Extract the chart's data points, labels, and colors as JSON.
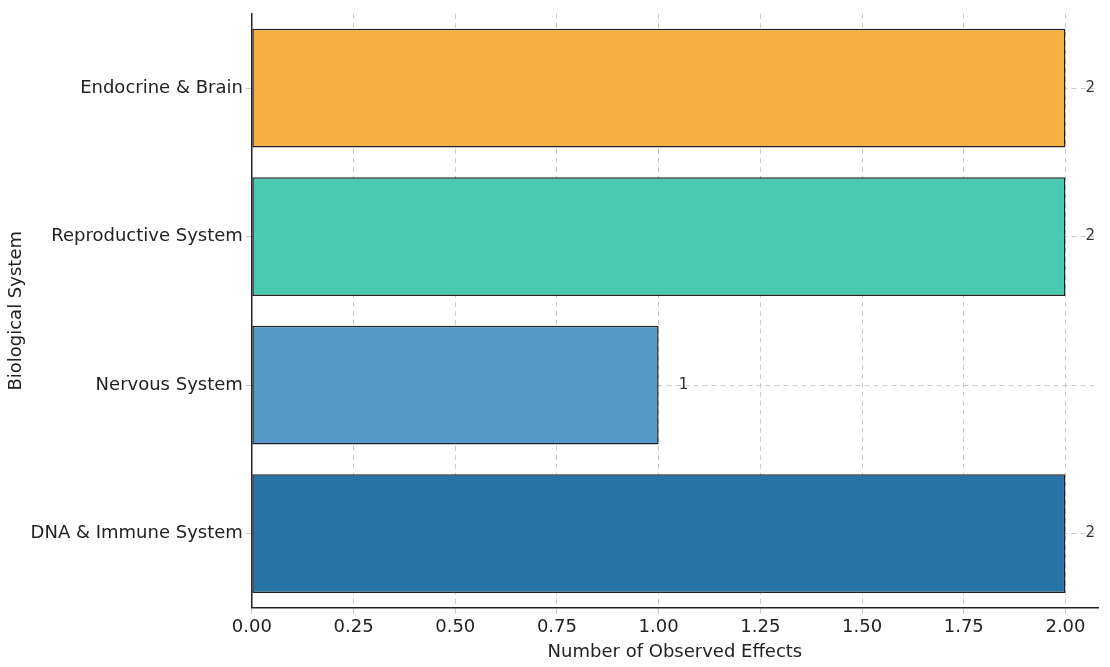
{
  "chart_data": {
    "type": "bar",
    "orientation": "horizontal",
    "xlabel": "Number of Observed Effects",
    "ylabel": "Biological System",
    "categories": [
      "Endocrine & Brain",
      "Reproductive System",
      "Nervous System",
      "DNA & Immune System"
    ],
    "values": [
      2,
      2,
      1,
      2
    ],
    "colors": [
      "#f4b042",
      "#48c9b0",
      "#5499c7",
      "#2874a6"
    ],
    "xlim": [
      0,
      2.08
    ],
    "xticks": [
      {
        "value": 0,
        "label": "0.00"
      },
      {
        "value": 0.25,
        "label": "0.25"
      },
      {
        "value": 0.5,
        "label": "0.50"
      },
      {
        "value": 0.75,
        "label": "0.75"
      },
      {
        "value": 1,
        "label": "1.00"
      },
      {
        "value": 1.25,
        "label": "1.25"
      },
      {
        "value": 1.5,
        "label": "1.50"
      },
      {
        "value": 1.75,
        "label": "1.75"
      },
      {
        "value": 2,
        "label": "2.00"
      }
    ],
    "grid": true,
    "data_labels": true
  }
}
